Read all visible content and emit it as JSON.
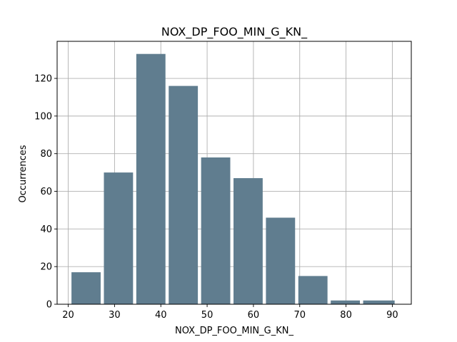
{
  "chart_data": {
    "type": "bar",
    "title": "NOX_DP_FOO_MIN_G_KN_",
    "xlabel": "NOX_DP_FOO_MIN_G_KN_",
    "ylabel": "Occurrences",
    "bins": [
      [
        20.7,
        27.0
      ],
      [
        27.7,
        34.0
      ],
      [
        34.7,
        41.0
      ],
      [
        41.7,
        48.0
      ],
      [
        48.7,
        55.0
      ],
      [
        55.7,
        62.0
      ],
      [
        62.7,
        69.0
      ],
      [
        69.7,
        76.0
      ],
      [
        76.7,
        83.0
      ],
      [
        83.7,
        90.5
      ]
    ],
    "values": [
      17,
      70,
      133,
      116,
      78,
      67,
      46,
      15,
      2,
      2
    ],
    "xlim": [
      17.6,
      94.1
    ],
    "ylim": [
      0,
      139.7
    ],
    "xticks": [
      20,
      30,
      40,
      50,
      60,
      70,
      80,
      90
    ],
    "yticks": [
      0,
      20,
      40,
      60,
      80,
      100,
      120
    ],
    "grid": true,
    "bar_color": "#607d8f"
  }
}
